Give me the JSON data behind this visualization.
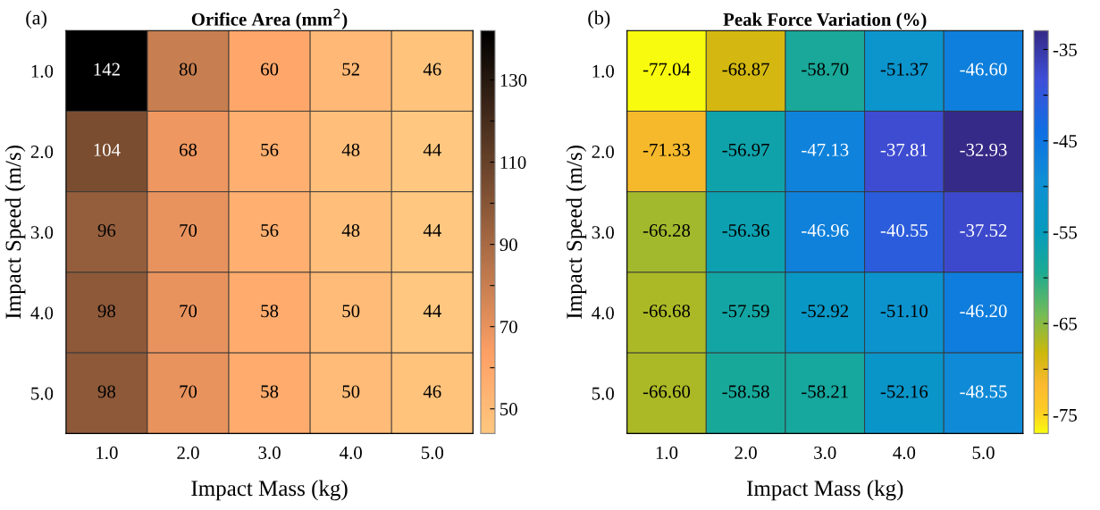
{
  "chart_data": [
    {
      "type": "heatmap",
      "title": "Orifice Area (mm$^{2}$)",
      "xlabel": "Impact Mass (kg)",
      "ylabel": "Impact Speed (m/s)",
      "annotations": [
        "(a)"
      ],
      "categories": [
        "1.0",
        "2.0",
        "3.0",
        "4.0",
        "5.0"
      ],
      "y_categories": [
        "1.0",
        "2.0",
        "3.0",
        "4.0",
        "5.0"
      ],
      "cells": [
        [
          142,
          80,
          60,
          52,
          46
        ],
        [
          104,
          68,
          56,
          48,
          44
        ],
        [
          96,
          70,
          56,
          48,
          44
        ],
        [
          98,
          70,
          58,
          50,
          44
        ],
        [
          98,
          70,
          58,
          50,
          46
        ]
      ],
      "data_labels": true,
      "clim": [
        44,
        142
      ],
      "cticks": [
        50,
        {
          "value": 60,
          "label": null
        },
        70,
        {
          "value": 80,
          "label": null
        },
        90,
        {
          "value": 100,
          "label": null
        },
        110,
        {
          "value": 120,
          "label": null
        },
        130,
        {
          "value": 140,
          "label": null
        }
      ]
    },
    {
      "type": "heatmap",
      "title": "Peak Force Variation (%)",
      "xlabel": "Impact Mass (kg)",
      "ylabel": "Impact Speed (m/s)",
      "annotations": [
        "(b)"
      ],
      "categories": [
        "1.0",
        "2.0",
        "3.0",
        "4.0",
        "5.0"
      ],
      "y_categories": [
        "1.0",
        "2.0",
        "3.0",
        "4.0",
        "5.0"
      ],
      "cells": [
        [
          -77.04,
          -68.87,
          -58.7,
          -51.37,
          -46.6
        ],
        [
          -71.33,
          -56.97,
          -47.13,
          -37.81,
          -32.93
        ],
        [
          -66.28,
          -56.36,
          -46.96,
          -40.55,
          -37.52
        ],
        [
          -66.68,
          -57.59,
          -52.92,
          -51.1,
          -46.2
        ],
        [
          -66.6,
          -58.58,
          -58.21,
          -52.16,
          -48.55
        ]
      ],
      "cell_labels": [
        [
          "-77.04",
          "-68.87",
          "-58.70",
          "-51.37",
          "-46.60"
        ],
        [
          "-71.33",
          "-56.97",
          "-47.13",
          "-37.81",
          "-32.93"
        ],
        [
          "-66.28",
          "-56.36",
          "-46.96",
          "-40.55",
          "-37.52"
        ],
        [
          "-66.68",
          "-57.59",
          "-52.92",
          "-51.10",
          "-46.20"
        ],
        [
          "-66.60",
          "-58.58",
          "-58.21",
          "-52.16",
          "-48.55"
        ]
      ],
      "clim": [
        -77.04,
        -32.93
      ],
      "cticks": [
        -75,
        {
          "value": -70,
          "label": null
        },
        -65,
        {
          "value": -60,
          "label": null
        },
        -55,
        {
          "value": -50,
          "label": null
        },
        -45,
        {
          "value": -40,
          "label": null
        },
        -35
      ]
    }
  ]
}
